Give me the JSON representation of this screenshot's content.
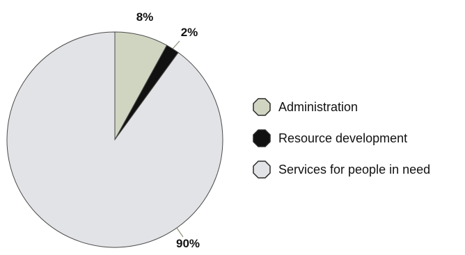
{
  "chart_data": {
    "type": "pie",
    "title": "",
    "categories": [
      "Administration",
      "Resource development",
      "Services for people in need"
    ],
    "series": [
      {
        "values": [
          8,
          2,
          90
        ]
      }
    ],
    "data_labels": [
      "8%",
      "2%",
      "90%"
    ],
    "legend": {
      "placement": "right",
      "items": [
        {
          "label": "Administration",
          "color": "#cfd5c1"
        },
        {
          "label": "Resource development",
          "color": "#111111"
        },
        {
          "label": "Services for people in need",
          "color": "#e2e3e6"
        }
      ]
    }
  },
  "colors": {
    "outline": "#4a4a4a",
    "text": "#111111",
    "slices": [
      "#cfd5c1",
      "#111111",
      "#e2e3e6"
    ]
  }
}
